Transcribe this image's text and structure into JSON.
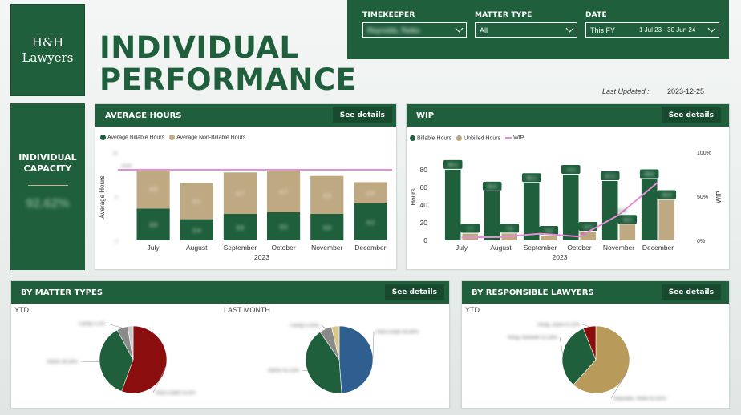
{
  "logo": {
    "line1": "H&H",
    "line2": "Lawyers"
  },
  "title": {
    "line1": "INDIVIDUAL",
    "line2": "PERFORMANCE"
  },
  "filters": {
    "timekeeper": {
      "label": "TIMEKEEPER",
      "value": "Reynolds, Reiko"
    },
    "matter_type": {
      "label": "MATTER TYPE",
      "value": "All"
    },
    "date": {
      "label": "DATE",
      "value": "This FY",
      "range": "1 Jul 23 - 30 Jun 24"
    }
  },
  "last_updated": {
    "label": "Last Updated :",
    "value": "2023-12-25"
  },
  "capacity": {
    "title_line1": "INDIVIDUAL",
    "title_line2": "CAPACITY",
    "value": "92.62%"
  },
  "avg_hours": {
    "title": "AVERAGE HOURS",
    "see_details": "See details",
    "legend": [
      "Average Billable Hours",
      "Average Non-Billable Hours"
    ],
    "ylabel": "Average Hours",
    "target_label": "8.00"
  },
  "wip": {
    "title": "WIP",
    "see_details": "See details",
    "legend": [
      "Billable Hours",
      "Unbilled Hours",
      "WIP"
    ],
    "ylabel": "Hours",
    "y2label": "WIP"
  },
  "matter_types": {
    "title": "BY MATTER TYPES",
    "see_details": "See details",
    "ytd_label": "YTD",
    "last_month_label": "LAST MONTH"
  },
  "responsible": {
    "title": "BY RESPONSIBLE LAWYERS",
    "see_details": "See details",
    "ytd_label": "YTD"
  },
  "colors": {
    "green": "#1f5f3c",
    "tan": "#bfa983",
    "pink": "#e58fd6",
    "red": "#8b0e0e",
    "blue": "#2e5f8e",
    "gold": "#b89a5a",
    "grey": "#8a8a8a"
  },
  "chart_data": [
    {
      "type": "bar",
      "title": "AVERAGE HOURS",
      "xlabel": "2023",
      "ylabel": "Average Hours",
      "categories": [
        "July",
        "August",
        "September",
        "October",
        "November",
        "December"
      ],
      "yticks": [
        "10",
        "5",
        "0"
      ],
      "ylim": [
        0,
        10
      ],
      "target": 8,
      "series": [
        {
          "name": "Average Billable Hours",
          "values": [
            3.6,
            2.4,
            3.0,
            3.2,
            3.0,
            4.2
          ],
          "labels": [
            "3.6",
            "2.4",
            "3.0",
            "3.2",
            "3.0",
            "4.2"
          ]
        },
        {
          "name": "Average Non-Billable Hours",
          "values": [
            4.5,
            4.1,
            4.7,
            4.7,
            4.3,
            2.4
          ],
          "labels": [
            "4.5",
            "4.1",
            "4.7",
            "4.7",
            "4.3",
            "2.4"
          ]
        }
      ]
    },
    {
      "type": "bar",
      "title": "WIP",
      "xlabel": "2023",
      "ylabel": "Hours",
      "categories": [
        "July",
        "August",
        "September",
        "October",
        "November",
        "December"
      ],
      "yticks": [
        "80",
        "60",
        "40",
        "20",
        "0"
      ],
      "y2ticks": [
        "100%",
        "50%",
        "0%"
      ],
      "ylim": [
        0,
        100
      ],
      "series": [
        {
          "name": "Billable Hours",
          "values": [
            80.1,
            55.6,
            65.2,
            74.5,
            67.3,
            69.6
          ],
          "labels": [
            "80.1",
            "55.6",
            "65.2",
            "74.5",
            "67.3",
            "69.6"
          ]
        },
        {
          "name": "Unbilled Hours",
          "values": [
            7.7,
            7.8,
            5.5,
            10.0,
            18.0,
            45.9
          ],
          "labels": [
            "7.7",
            "7.8",
            "5.5",
            "10.0",
            "18.0",
            "45.9"
          ]
        },
        {
          "name": "WIP",
          "values": [
            3.4,
            3.8,
            7.6,
            4.3,
            28.8,
            65.9
          ],
          "labels": [
            "",
            "",
            "",
            "4.30%",
            "28.80%",
            ""
          ]
        }
      ]
    },
    {
      "type": "pie",
      "title": "YTD",
      "slices": [
        {
          "label": "Real Estate 55.6%",
          "value": 55.6,
          "color": "#8b0e0e"
        },
        {
          "label": "Admin 36.56%",
          "value": 36.56,
          "color": "#1f5f3c"
        },
        {
          "label": "Family 5.2%",
          "value": 5.2,
          "color": "#8a8a8a"
        },
        {
          "label": "",
          "value": 2.64,
          "color": "#c9c9c9"
        }
      ]
    },
    {
      "type": "pie",
      "title": "LAST MONTH",
      "slices": [
        {
          "label": "Real Estate 48.86%",
          "value": 48.86,
          "color": "#2e5f8e"
        },
        {
          "label": "Admin 41.53%",
          "value": 41.53,
          "color": "#1f5f3c"
        },
        {
          "label": "Family 5.93%",
          "value": 5.93,
          "color": "#8a8a8a"
        },
        {
          "label": "",
          "value": 3.68,
          "color": "#d8c98a"
        }
      ]
    },
    {
      "type": "pie",
      "title": "YTD",
      "slices": [
        {
          "label": "Reynolds, Reiko 61.62%",
          "value": 61.62,
          "color": "#b89a5a"
        },
        {
          "label": "Hong, Kenneth 32.28%",
          "value": 32.28,
          "color": "#1f5f3c"
        },
        {
          "label": "Hong, Joann 6.10%",
          "value": 6.1,
          "color": "#8b0e0e"
        }
      ]
    }
  ]
}
